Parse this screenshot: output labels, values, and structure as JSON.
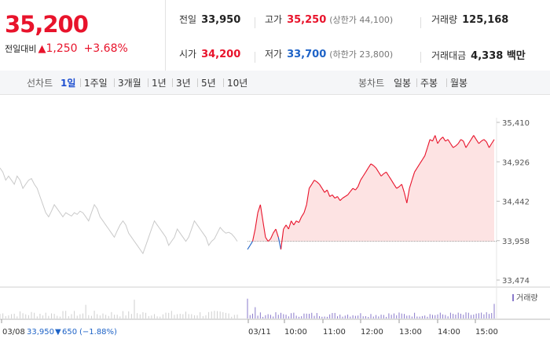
{
  "quote": {
    "price": "35,200",
    "change_label": "전일대비",
    "change_symbol": "▲",
    "change": "1,250",
    "change_pct": "+3.68%",
    "stats": [
      {
        "key": "전일",
        "value": "33,950",
        "color": "#222222"
      },
      {
        "key": "고가",
        "value": "35,250",
        "color": "#e8132b",
        "sub": "(상한가 44,100)"
      },
      {
        "key": "거래량",
        "value": "125,168",
        "color": "#222222"
      },
      {
        "key": "시가",
        "value": "34,200",
        "color": "#e8132b"
      },
      {
        "key": "저가",
        "value": "33,700",
        "color": "#1e63c7",
        "sub": "(하한가 23,800)"
      },
      {
        "key": "거래대금",
        "value": "4,338 백만",
        "color": "#222222"
      }
    ]
  },
  "toolbar": {
    "line_label": "선차트",
    "line_periods": [
      "1일",
      "1주일",
      "3개월",
      "1년",
      "3년",
      "5년",
      "10년"
    ],
    "active_period": "1일",
    "candle_label": "봉차트",
    "candle_periods": [
      "일봉",
      "주봉",
      "월봉"
    ]
  },
  "chart_data": {
    "type": "line",
    "yticks": [
      "35,410",
      "34,926",
      "34,442",
      "33,958",
      "33,474"
    ],
    "ylim": [
      33474,
      35410
    ],
    "baseline": 33950,
    "x_labels_prev": [
      "03/08"
    ],
    "x_labels_today": [
      "03/11",
      "10:00",
      "11:00",
      "12:00",
      "13:00",
      "14:00",
      "15:00"
    ],
    "prev_day_note": {
      "date": "03/08",
      "close": "33,950",
      "symbol": "▼",
      "change": "650",
      "pct": "(−1.88%)"
    },
    "volume_legend": "거래량",
    "prev_series": {
      "name": "03/08",
      "values": [
        34850,
        34800,
        34700,
        34750,
        34700,
        34650,
        34750,
        34700,
        34600,
        34650,
        34700,
        34720,
        34650,
        34600,
        34500,
        34400,
        34300,
        34250,
        34320,
        34400,
        34350,
        34300,
        34250,
        34300,
        34280,
        34260,
        34300,
        34280,
        34320,
        34300,
        34250,
        34200,
        34300,
        34400,
        34350,
        34250,
        34200,
        34150,
        34100,
        34050,
        34000,
        34080,
        34150,
        34200,
        34150,
        34050,
        34000,
        33950,
        33900,
        33850,
        33800,
        33900,
        34000,
        34100,
        34200,
        34150,
        34100,
        34050,
        34000,
        33900,
        33950,
        34000,
        34100,
        34050,
        34000,
        33950,
        34000,
        34100,
        34200,
        34150,
        34100,
        34050,
        34000,
        33900,
        33950,
        33980,
        34050,
        34120,
        34080,
        34050,
        34060,
        34040,
        34000,
        33950
      ]
    },
    "today_series": {
      "name": "03/11",
      "values": [
        33850,
        33900,
        33950,
        34100,
        34300,
        34400,
        34200,
        34000,
        33950,
        33980,
        34050,
        34100,
        34000,
        33850,
        34100,
        34150,
        34100,
        34200,
        34150,
        34200,
        34180,
        34250,
        34300,
        34400,
        34600,
        34650,
        34700,
        34680,
        34650,
        34600,
        34550,
        34580,
        34500,
        34520,
        34480,
        34500,
        34450,
        34480,
        34500,
        34520,
        34560,
        34600,
        34580,
        34620,
        34700,
        34750,
        34800,
        34850,
        34900,
        34880,
        34850,
        34800,
        34750,
        34780,
        34800,
        34750,
        34700,
        34650,
        34600,
        34620,
        34650,
        34550,
        34420,
        34600,
        34700,
        34800,
        34850,
        34900,
        34950,
        35000,
        35100,
        35200,
        35180,
        35250,
        35150,
        35200,
        35230,
        35180,
        35200,
        35150,
        35100,
        35120,
        35150,
        35200,
        35180,
        35100,
        35150,
        35200,
        35250,
        35200,
        35150,
        35180,
        35200,
        35170,
        35100,
        35150,
        35200
      ]
    }
  }
}
